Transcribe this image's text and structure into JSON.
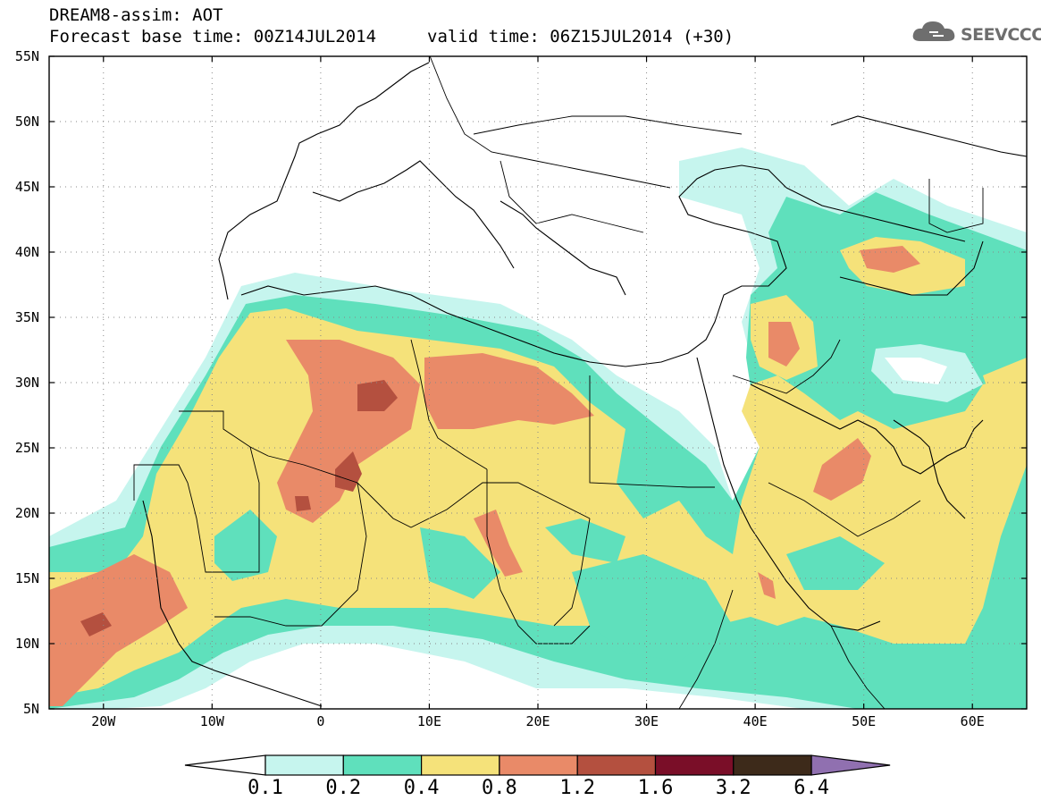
{
  "header": {
    "title": "DREAM8-assim: AOT",
    "forecast_base": "Forecast base time: 00Z14JUL2014",
    "valid_time": "valid time: 06Z15JUL2014 (+30)"
  },
  "logo": {
    "text": "SEEVCCC",
    "icon": "cloud-icon"
  },
  "map": {
    "type": "contour-map",
    "lon_range": [
      -25,
      65
    ],
    "lat_range": [
      5,
      55
    ],
    "lat_labels": [
      "55N",
      "50N",
      "45N",
      "40N",
      "35N",
      "30N",
      "25N",
      "20N",
      "15N",
      "10N",
      "5N"
    ],
    "lon_labels": [
      "20W",
      "10W",
      "0",
      "10E",
      "20E",
      "30E",
      "40E",
      "50E",
      "60E"
    ],
    "grid": "dotted"
  },
  "colorbar": {
    "labels": [
      "0.1",
      "0.2",
      "0.4",
      "0.8",
      "1.2",
      "1.6",
      "3.2",
      "6.4"
    ],
    "colors": [
      "#c6f5ee",
      "#5fe0bc",
      "#f5e27a",
      "#e98a68",
      "#b4503f",
      "#7a0e28",
      "#3d2a1a",
      "#9070b0"
    ]
  }
}
